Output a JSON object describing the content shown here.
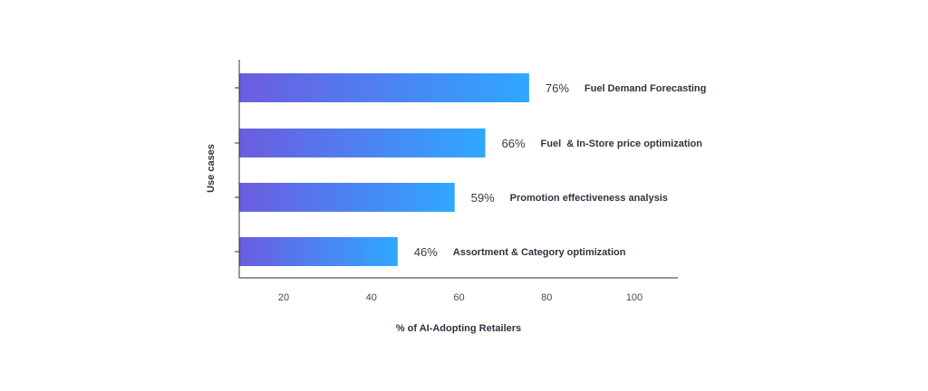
{
  "chart_data": {
    "type": "bar",
    "orientation": "horizontal",
    "categories": [
      "Fuel Demand Forecasting",
      "Fuel  & In-Store price optimization",
      "Promotion effectiveness analysis",
      "Assortment & Category optimization"
    ],
    "values": [
      76,
      66,
      59,
      46
    ],
    "value_labels": [
      "76%",
      "66%",
      "59%",
      "46%"
    ],
    "xlabel": "% of AI-Adopting Retailers",
    "ylabel": "Use cases",
    "xlim": [
      10,
      110
    ],
    "xticks": [
      20,
      40,
      60,
      80,
      100
    ],
    "grid": false,
    "colors": {
      "bar_start": "#6c5ce0",
      "bar_end": "#2ea8ff",
      "axis": "#333333"
    }
  }
}
